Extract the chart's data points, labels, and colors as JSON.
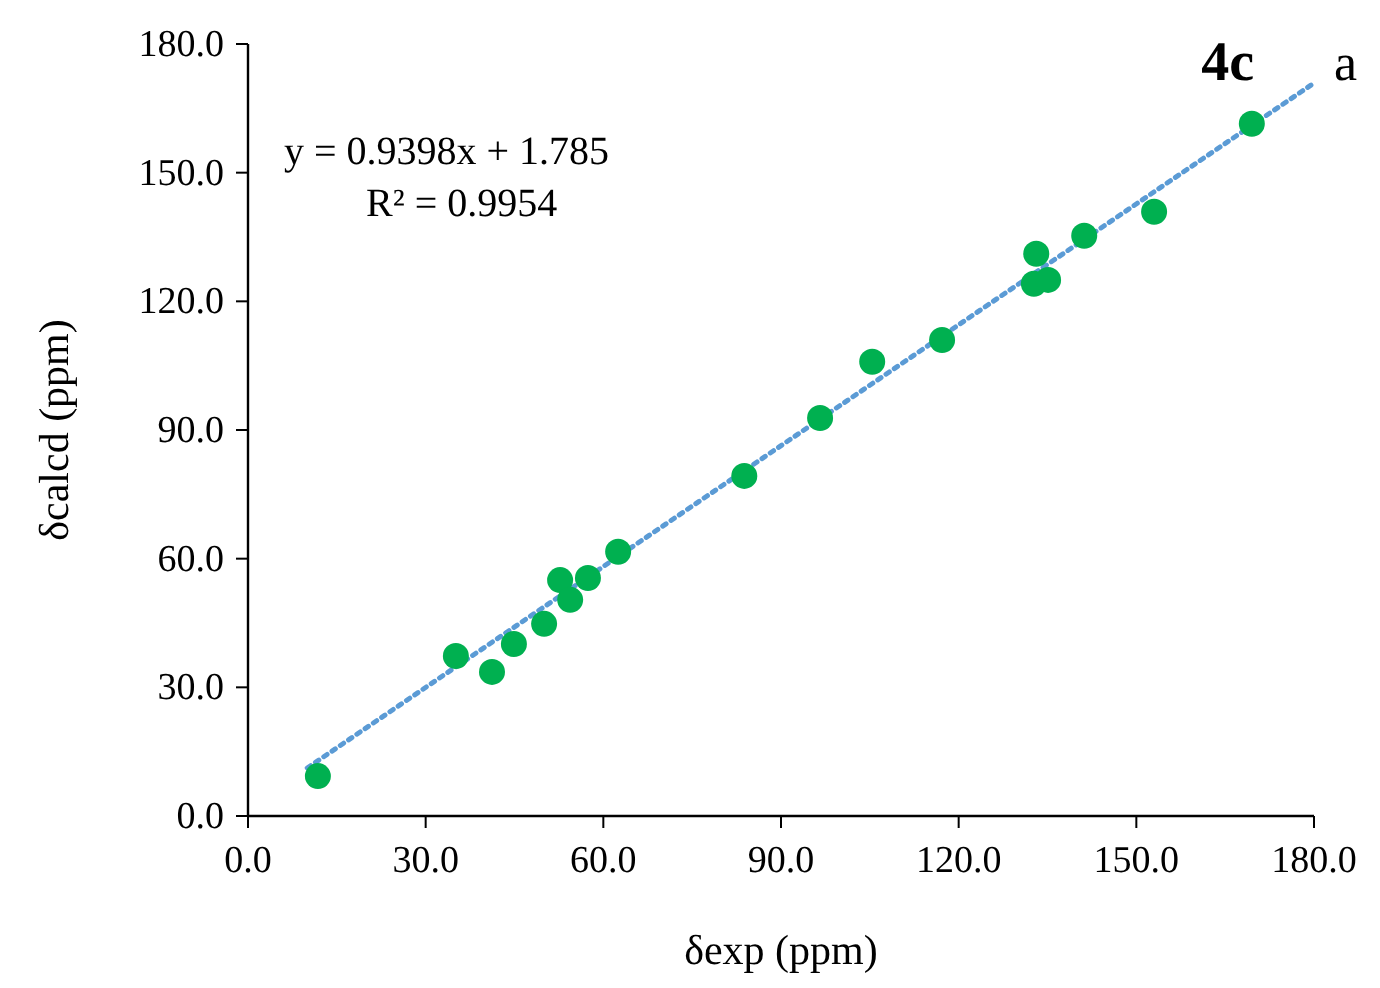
{
  "chart_data": {
    "type": "scatter",
    "xlabel": "δexp (ppm)",
    "ylabel": "δcalcd (ppm)",
    "annotations": [
      "y = 0.9398x + 1.785",
      "R² = 0.9954",
      "4c",
      "a"
    ],
    "xlim": [
      0,
      180
    ],
    "ylim": [
      0,
      180
    ],
    "xticks": [
      {
        "value": 0,
        "label": "0.0"
      },
      {
        "value": 30,
        "label": "30.0"
      },
      {
        "value": 60,
        "label": "60.0"
      },
      {
        "value": 90,
        "label": "90.0"
      },
      {
        "value": 120,
        "label": "120.0"
      },
      {
        "value": 150,
        "label": "150.0"
      },
      {
        "value": 180,
        "label": "180.0"
      }
    ],
    "yticks": [
      {
        "value": 0,
        "label": "0.0"
      },
      {
        "value": 30,
        "label": "30.0"
      },
      {
        "value": 60,
        "label": "60.0"
      },
      {
        "value": 90,
        "label": "90.0"
      },
      {
        "value": 120,
        "label": "120.0"
      },
      {
        "value": 150,
        "label": "150.0"
      },
      {
        "value": 180,
        "label": "180.0"
      }
    ],
    "grid": false,
    "series": [
      {
        "type": "line",
        "color": "#5b9bd5",
        "line_style": "dotted",
        "marker": "none",
        "x": [
          10,
          180
        ],
        "values": [
          11.2,
          170.9
        ]
      },
      {
        "color": "#00b050",
        "marker": "circle",
        "x": [
          11.8,
          35.1,
          41.2,
          44.9,
          50.0,
          52.7,
          54.4,
          57.4,
          62.5,
          83.8,
          96.6,
          105.4,
          117.2,
          133.1,
          132.7,
          135.1,
          141.2,
          153.0,
          169.5
        ],
        "values": [
          9.3,
          37.3,
          33.6,
          40.1,
          44.8,
          55.0,
          50.4,
          55.5,
          61.6,
          79.3,
          92.8,
          105.9,
          111.0,
          131.1,
          124.1,
          125.0,
          135.3,
          140.9,
          161.4
        ]
      }
    ]
  }
}
